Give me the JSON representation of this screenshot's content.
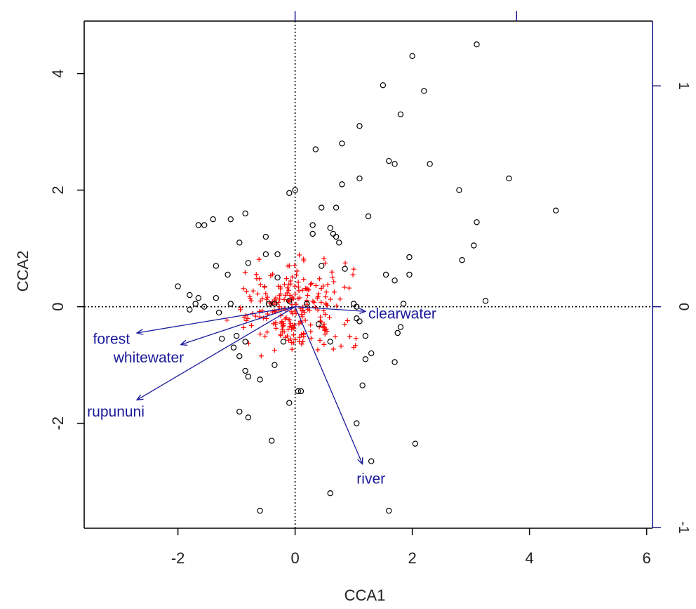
{
  "chart_data": {
    "type": "scatter",
    "title": "",
    "xlabel": "CCA1",
    "ylabel": "CCA2",
    "xlim": [
      -3.6,
      6.1
    ],
    "ylim": [
      -3.8,
      4.9
    ],
    "x_ticks": [
      -2,
      0,
      2,
      4,
      6
    ],
    "y_ticks": [
      -2,
      0,
      2,
      4
    ],
    "x_tick_labels": [
      "-2",
      "0",
      "2",
      "4",
      "6"
    ],
    "y_tick_labels": [
      "-2",
      "0",
      "2",
      "4"
    ],
    "right_axis": {
      "color": "#1a1a8a",
      "ticks": [
        -1,
        0,
        1
      ],
      "tick_labels": [
        "-1",
        "0",
        "1"
      ],
      "scale_factor": 0.264
    },
    "top_axis": {
      "color": "#1a1a8a",
      "tick_positions": [
        0,
        3.78
      ]
    },
    "reference_lines": {
      "x": 0,
      "y": 0,
      "style": "dotted"
    },
    "sites": {
      "marker": "open-circle",
      "color": "#000000",
      "points": [
        [
          3.1,
          4.5
        ],
        [
          2.0,
          4.3
        ],
        [
          1.5,
          3.8
        ],
        [
          2.2,
          3.7
        ],
        [
          1.8,
          3.3
        ],
        [
          1.1,
          3.1
        ],
        [
          0.8,
          2.8
        ],
        [
          0.35,
          2.7
        ],
        [
          1.6,
          2.5
        ],
        [
          1.7,
          2.45
        ],
        [
          2.3,
          2.45
        ],
        [
          3.65,
          2.2
        ],
        [
          1.1,
          2.2
        ],
        [
          0.8,
          2.1
        ],
        [
          0.0,
          2.0
        ],
        [
          -0.1,
          1.95
        ],
        [
          2.8,
          2.0
        ],
        [
          0.45,
          1.7
        ],
        [
          0.7,
          1.7
        ],
        [
          4.45,
          1.65
        ],
        [
          -0.85,
          1.6
        ],
        [
          1.25,
          1.55
        ],
        [
          -1.1,
          1.5
        ],
        [
          -1.4,
          1.5
        ],
        [
          3.1,
          1.45
        ],
        [
          -1.65,
          1.4
        ],
        [
          -1.55,
          1.4
        ],
        [
          0.3,
          1.4
        ],
        [
          0.6,
          1.35
        ],
        [
          0.65,
          1.25
        ],
        [
          0.3,
          1.25
        ],
        [
          -0.5,
          1.2
        ],
        [
          0.7,
          1.2
        ],
        [
          0.75,
          1.1
        ],
        [
          -0.95,
          1.1
        ],
        [
          3.05,
          1.05
        ],
        [
          -0.5,
          0.9
        ],
        [
          -0.3,
          0.9
        ],
        [
          1.95,
          0.85
        ],
        [
          2.85,
          0.8
        ],
        [
          -0.8,
          0.75
        ],
        [
          -1.35,
          0.7
        ],
        [
          0.45,
          0.7
        ],
        [
          0.85,
          0.65
        ],
        [
          -1.15,
          0.55
        ],
        [
          1.55,
          0.55
        ],
        [
          1.95,
          0.55
        ],
        [
          -0.3,
          0.5
        ],
        [
          1.7,
          0.45
        ],
        [
          -2.0,
          0.35
        ],
        [
          -1.8,
          0.2
        ],
        [
          -1.65,
          0.15
        ],
        [
          -1.35,
          0.15
        ],
        [
          -1.7,
          0.05
        ],
        [
          -1.1,
          0.05
        ],
        [
          -1.55,
          0.0
        ],
        [
          -1.8,
          -0.05
        ],
        [
          3.25,
          0.1
        ],
        [
          1.85,
          0.05
        ],
        [
          1.0,
          0.05
        ],
        [
          -0.35,
          0.05
        ],
        [
          -0.45,
          0.05
        ],
        [
          -0.1,
          0.1
        ],
        [
          0.2,
          0.05
        ],
        [
          1.05,
          0.0
        ],
        [
          -1.3,
          -0.1
        ],
        [
          1.05,
          -0.2
        ],
        [
          1.1,
          -0.25
        ],
        [
          0.4,
          -0.3
        ],
        [
          1.8,
          -0.35
        ],
        [
          1.75,
          -0.45
        ],
        [
          -1.0,
          -0.5
        ],
        [
          -1.25,
          -0.55
        ],
        [
          1.2,
          -0.5
        ],
        [
          -0.85,
          -0.6
        ],
        [
          0.6,
          -0.6
        ],
        [
          -0.2,
          -0.6
        ],
        [
          -1.05,
          -0.7
        ],
        [
          1.3,
          -0.8
        ],
        [
          1.2,
          -0.9
        ],
        [
          -0.95,
          -0.85
        ],
        [
          1.7,
          -0.95
        ],
        [
          -0.35,
          -1.0
        ],
        [
          -0.85,
          -1.1
        ],
        [
          -0.8,
          -1.2
        ],
        [
          -0.6,
          -1.25
        ],
        [
          1.15,
          -1.35
        ],
        [
          0.05,
          -1.45
        ],
        [
          0.1,
          -1.45
        ],
        [
          -0.1,
          -1.65
        ],
        [
          -0.95,
          -1.8
        ],
        [
          -0.8,
          -1.9
        ],
        [
          1.05,
          -2.0
        ],
        [
          -0.4,
          -2.3
        ],
        [
          2.05,
          -2.35
        ],
        [
          1.3,
          -2.65
        ],
        [
          0.6,
          -3.2
        ],
        [
          -0.6,
          -3.5
        ],
        [
          1.6,
          -3.5
        ]
      ]
    },
    "species": {
      "marker": "plus",
      "color": "#ff0000",
      "center": [
        0,
        0
      ],
      "spread": [
        0.85,
        0.6
      ],
      "count": 240
    },
    "arrows": [
      {
        "label": "clearwater",
        "end": [
          1.2,
          -0.08
        ],
        "label_at": [
          1.25,
          -0.12
        ]
      },
      {
        "label": "forest",
        "end": [
          -2.7,
          -0.45
        ],
        "label_at": [
          -3.45,
          -0.55
        ]
      },
      {
        "label": "whitewater",
        "end": [
          -1.95,
          -0.65
        ],
        "label_at": [
          -3.1,
          -0.87
        ]
      },
      {
        "label": "rupununi",
        "end": [
          -2.7,
          -1.6
        ],
        "label_at": [
          -3.55,
          -1.8
        ]
      },
      {
        "label": "river",
        "end": [
          1.15,
          -2.7
        ],
        "label_at": [
          1.05,
          -2.95
        ]
      }
    ],
    "colors": {
      "arrows": "#1a1a9a",
      "sites": "#000000",
      "species": "#ff0000",
      "axis_secondary": "#1a1a8a"
    }
  }
}
